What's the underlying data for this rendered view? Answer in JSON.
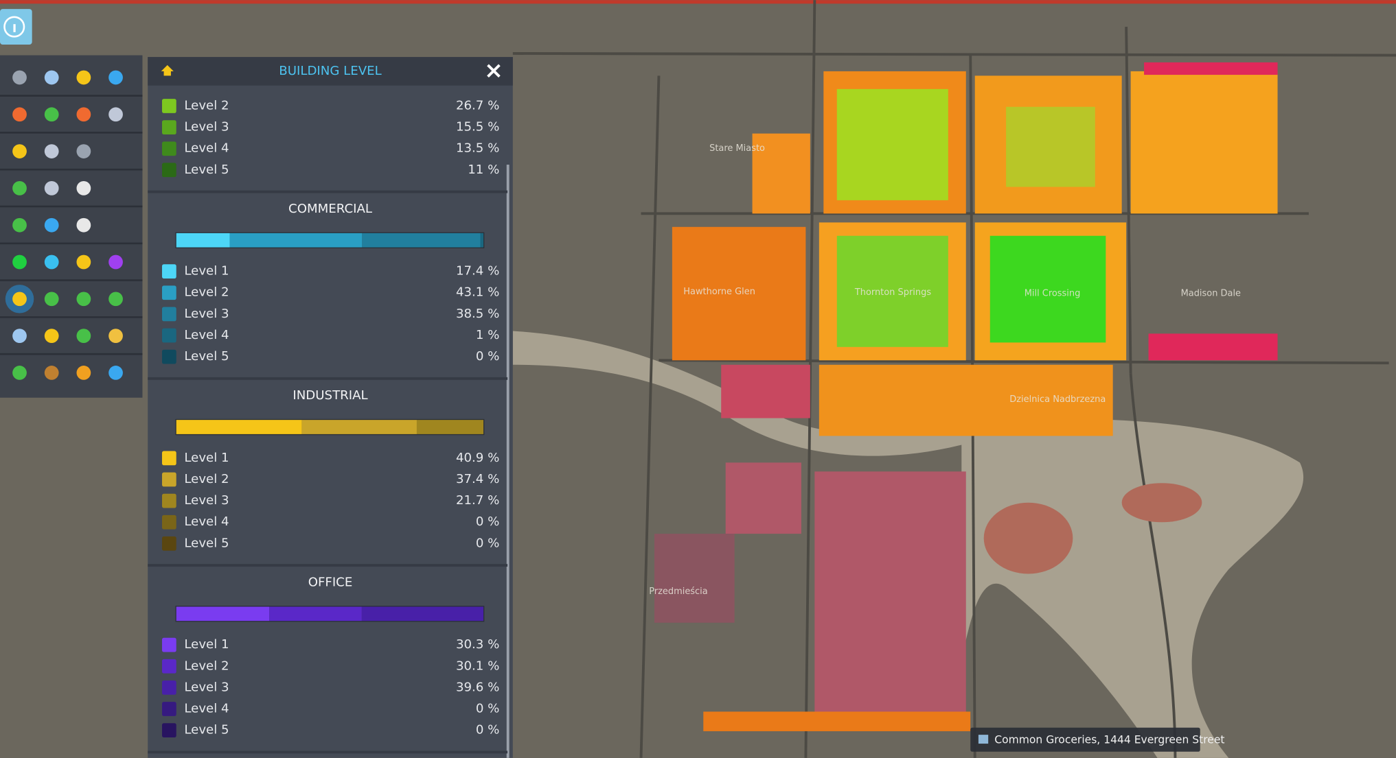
{
  "panel": {
    "title": "BUILDING LEVEL",
    "sections": [
      {
        "levels": [
          {
            "name": "Level 2",
            "value": 26.7,
            "label": "26.7 %",
            "color": "#7ec820"
          },
          {
            "name": "Level 3",
            "value": 15.5,
            "label": "15.5 %",
            "color": "#5aa81e"
          },
          {
            "name": "Level 4",
            "value": 13.5,
            "label": "13.5 %",
            "color": "#3f8a1c"
          },
          {
            "name": "Level 5",
            "value": 11,
            "label": "11 %",
            "color": "#2b6a16"
          }
        ]
      },
      {
        "name": "COMMERCIAL",
        "levels": [
          {
            "name": "Level 1",
            "value": 17.4,
            "label": "17.4 %",
            "color": "#4dd6f7"
          },
          {
            "name": "Level 2",
            "value": 43.1,
            "label": "43.1 %",
            "color": "#2a9fc4"
          },
          {
            "name": "Level 3",
            "value": 38.5,
            "label": "38.5 %",
            "color": "#217f9e"
          },
          {
            "name": "Level 4",
            "value": 1,
            "label": "1 %",
            "color": "#1a6780"
          },
          {
            "name": "Level 5",
            "value": 0,
            "label": "0 %",
            "color": "#104a5e"
          }
        ]
      },
      {
        "name": "INDUSTRIAL",
        "levels": [
          {
            "name": "Level 1",
            "value": 40.9,
            "label": "40.9 %",
            "color": "#f5c518"
          },
          {
            "name": "Level 2",
            "value": 37.4,
            "label": "37.4 %",
            "color": "#c9a52a"
          },
          {
            "name": "Level 3",
            "value": 21.7,
            "label": "21.7 %",
            "color": "#a0861f"
          },
          {
            "name": "Level 4",
            "value": 0,
            "label": "0 %",
            "color": "#7a6518"
          },
          {
            "name": "Level 5",
            "value": 0,
            "label": "0 %",
            "color": "#5a4610"
          }
        ]
      },
      {
        "name": "OFFICE",
        "levels": [
          {
            "name": "Level 1",
            "value": 30.3,
            "label": "30.3 %",
            "color": "#7a3cf0"
          },
          {
            "name": "Level 2",
            "value": 30.1,
            "label": "30.1 %",
            "color": "#5a28c8"
          },
          {
            "name": "Level 3",
            "value": 39.6,
            "label": "39.6 %",
            "color": "#4820a8"
          },
          {
            "name": "Level 4",
            "value": 0,
            "label": "0 %",
            "color": "#361a80"
          },
          {
            "name": "Level 5",
            "value": 0,
            "label": "0 %",
            "color": "#281460"
          }
        ]
      }
    ]
  },
  "map": {
    "labels": [
      "Stare Miasto",
      "Hawthorne Glen",
      "Thornton Springs",
      "Mill Crossing",
      "Madison Dale",
      "Dzielnica Nadbrzezna",
      "Przedmieścia"
    ]
  },
  "tooltip": "Common Groceries, 1444 Evergreen Street"
}
